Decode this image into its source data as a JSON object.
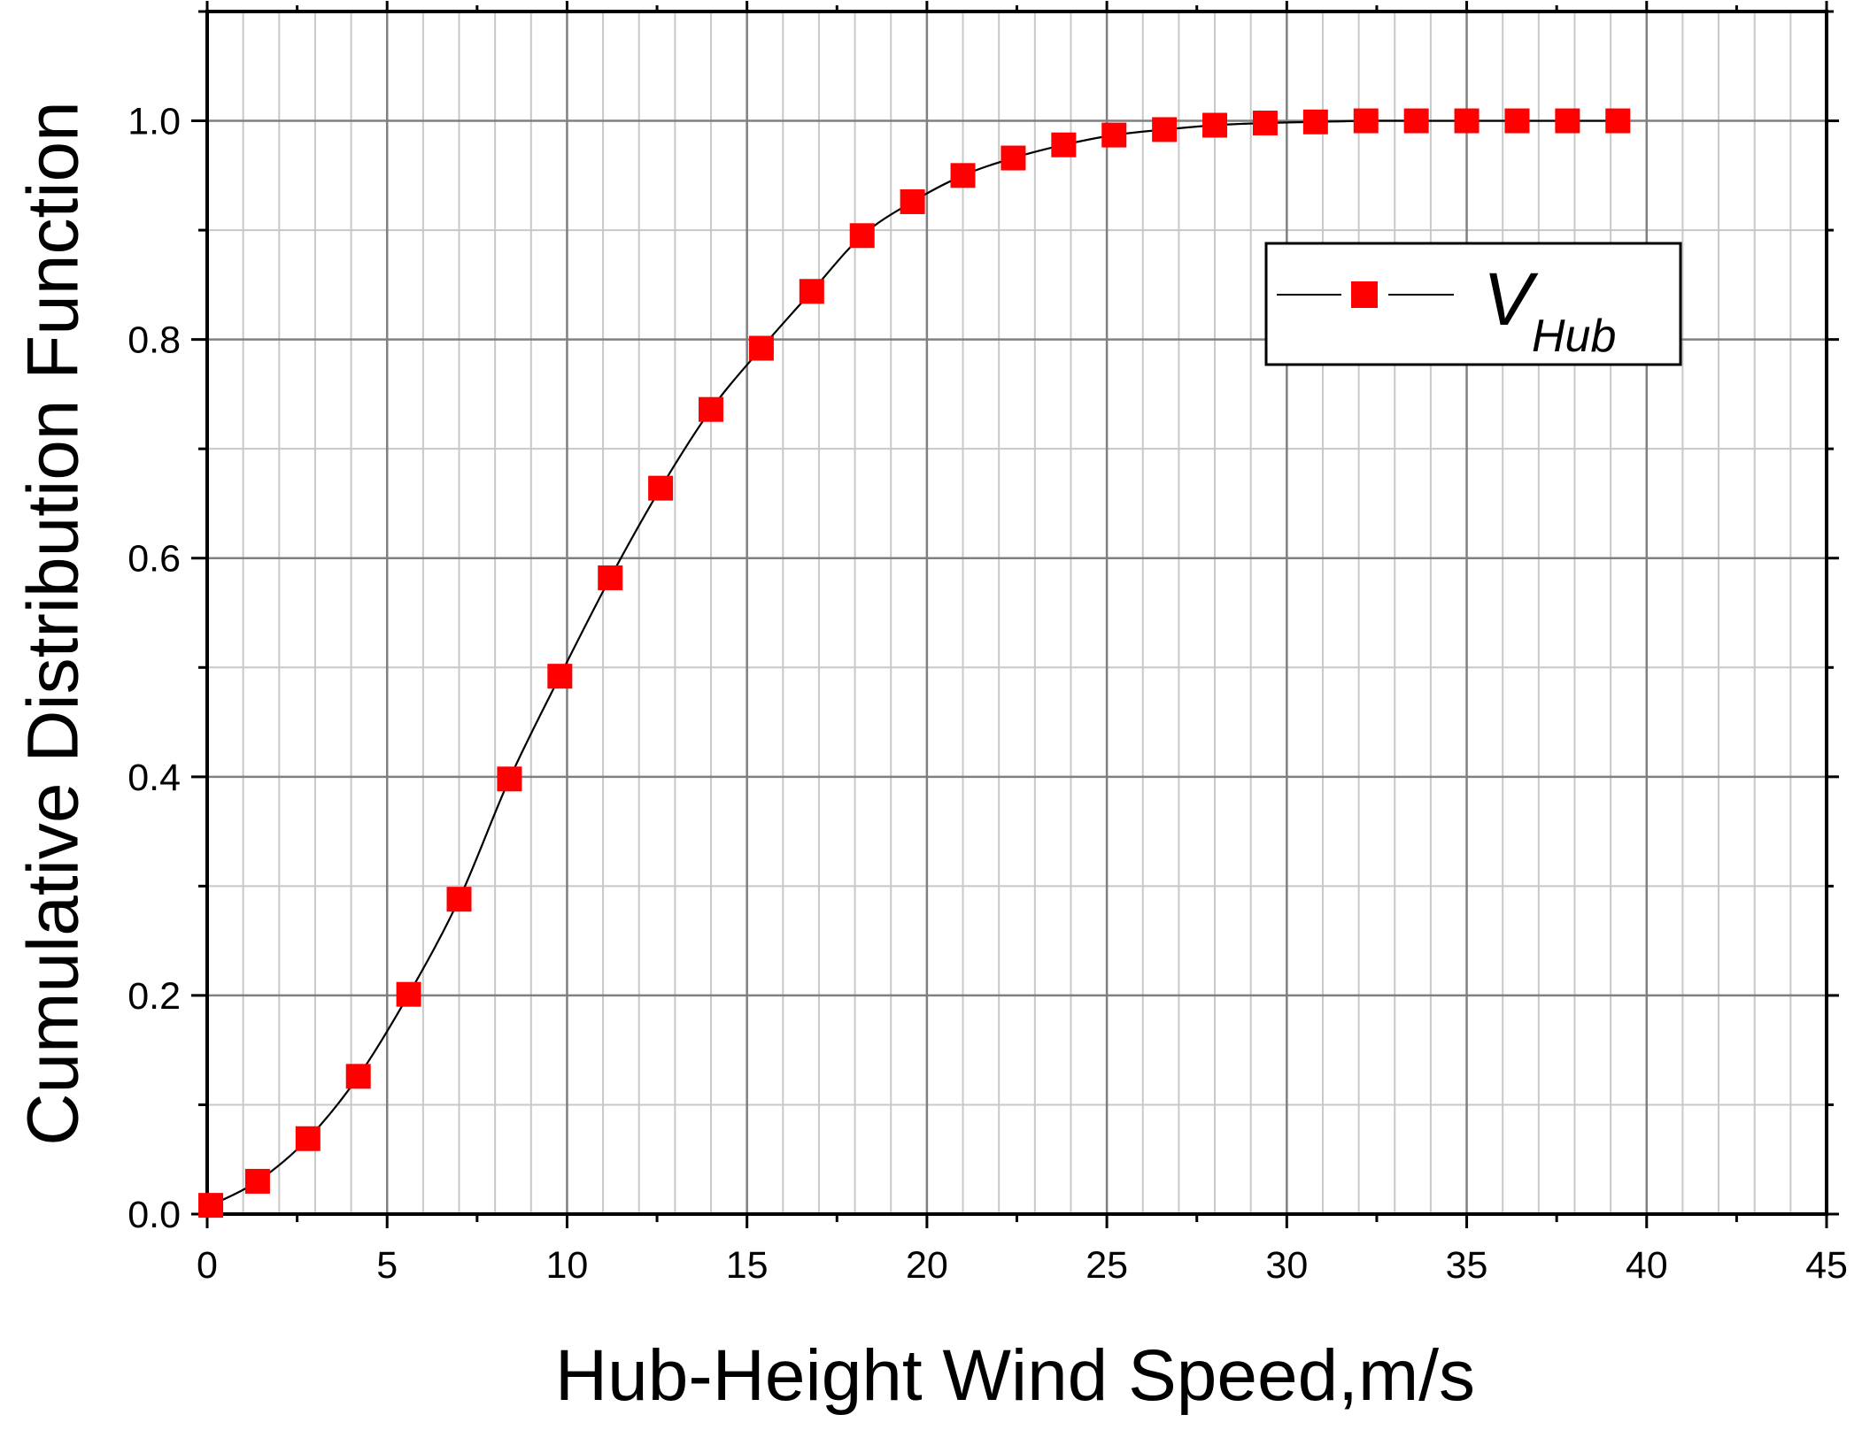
{
  "chart_data": {
    "type": "line",
    "title": "",
    "xlabel": "Hub-Height Wind Speed,m/s",
    "ylabel": "Cumulative Distribution Function",
    "xlim": [
      0,
      45
    ],
    "ylim": [
      0,
      1.1
    ],
    "x_ticks": [
      "0",
      "5",
      "10",
      "15",
      "20",
      "25",
      "30",
      "35",
      "40",
      "45"
    ],
    "y_ticks": [
      "0.0",
      "0.2",
      "0.4",
      "0.6",
      "0.8",
      "1.0"
    ],
    "grid": true,
    "legend_position": "top-right",
    "series": [
      {
        "legend_main": "V",
        "legend_sub": "Hub",
        "marker": "square",
        "marker_color": "#ff0000",
        "line_color": "#000000",
        "x": [
          0.1,
          1.4,
          2.8,
          4.2,
          5.6,
          7.0,
          8.4,
          9.8,
          11.2,
          12.6,
          14.0,
          15.4,
          16.8,
          18.2,
          19.6,
          21.0,
          22.4,
          23.8,
          25.2,
          26.6,
          28.0,
          29.4,
          30.8,
          32.2,
          33.6,
          35.0,
          36.4,
          37.8,
          39.2
        ],
        "y": [
          0.008,
          0.03,
          0.069,
          0.126,
          0.201,
          0.288,
          0.398,
          0.492,
          0.582,
          0.664,
          0.736,
          0.792,
          0.844,
          0.895,
          0.926,
          0.95,
          0.966,
          0.978,
          0.987,
          0.992,
          0.996,
          0.998,
          0.999,
          1.0,
          1.0,
          1.0,
          1.0,
          1.0,
          1.0
        ]
      }
    ]
  }
}
